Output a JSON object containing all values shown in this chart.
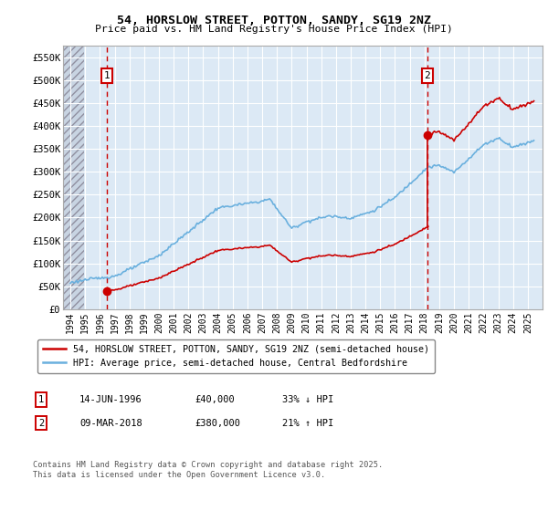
{
  "title1": "54, HORSLOW STREET, POTTON, SANDY, SG19 2NZ",
  "title2": "Price paid vs. HM Land Registry's House Price Index (HPI)",
  "ylabel_ticks": [
    "£0",
    "£50K",
    "£100K",
    "£150K",
    "£200K",
    "£250K",
    "£300K",
    "£350K",
    "£400K",
    "£450K",
    "£500K",
    "£550K"
  ],
  "ytick_values": [
    0,
    50000,
    100000,
    150000,
    200000,
    250000,
    300000,
    350000,
    400000,
    450000,
    500000,
    550000
  ],
  "ylim": [
    0,
    575000
  ],
  "sale1_year": 1996.45,
  "sale1_price": 40000,
  "sale2_year": 2018.18,
  "sale2_price": 380000,
  "hpi_color": "#6ab0de",
  "sale_color": "#cc0000",
  "vline_color": "#cc0000",
  "bg_color": "#dce9f5",
  "grid_color": "#ffffff",
  "legend_label1": "54, HORSLOW STREET, POTTON, SANDY, SG19 2NZ (semi-detached house)",
  "legend_label2": "HPI: Average price, semi-detached house, Central Bedfordshire",
  "annotation1": [
    "1",
    "14-JUN-1996",
    "£40,000",
    "33% ↓ HPI"
  ],
  "annotation2": [
    "2",
    "09-MAR-2018",
    "£380,000",
    "21% ↑ HPI"
  ],
  "footnote": "Contains HM Land Registry data © Crown copyright and database right 2025.\nThis data is licensed under the Open Government Licence v3.0.",
  "xmin": 1993.5,
  "xmax": 2026.0
}
